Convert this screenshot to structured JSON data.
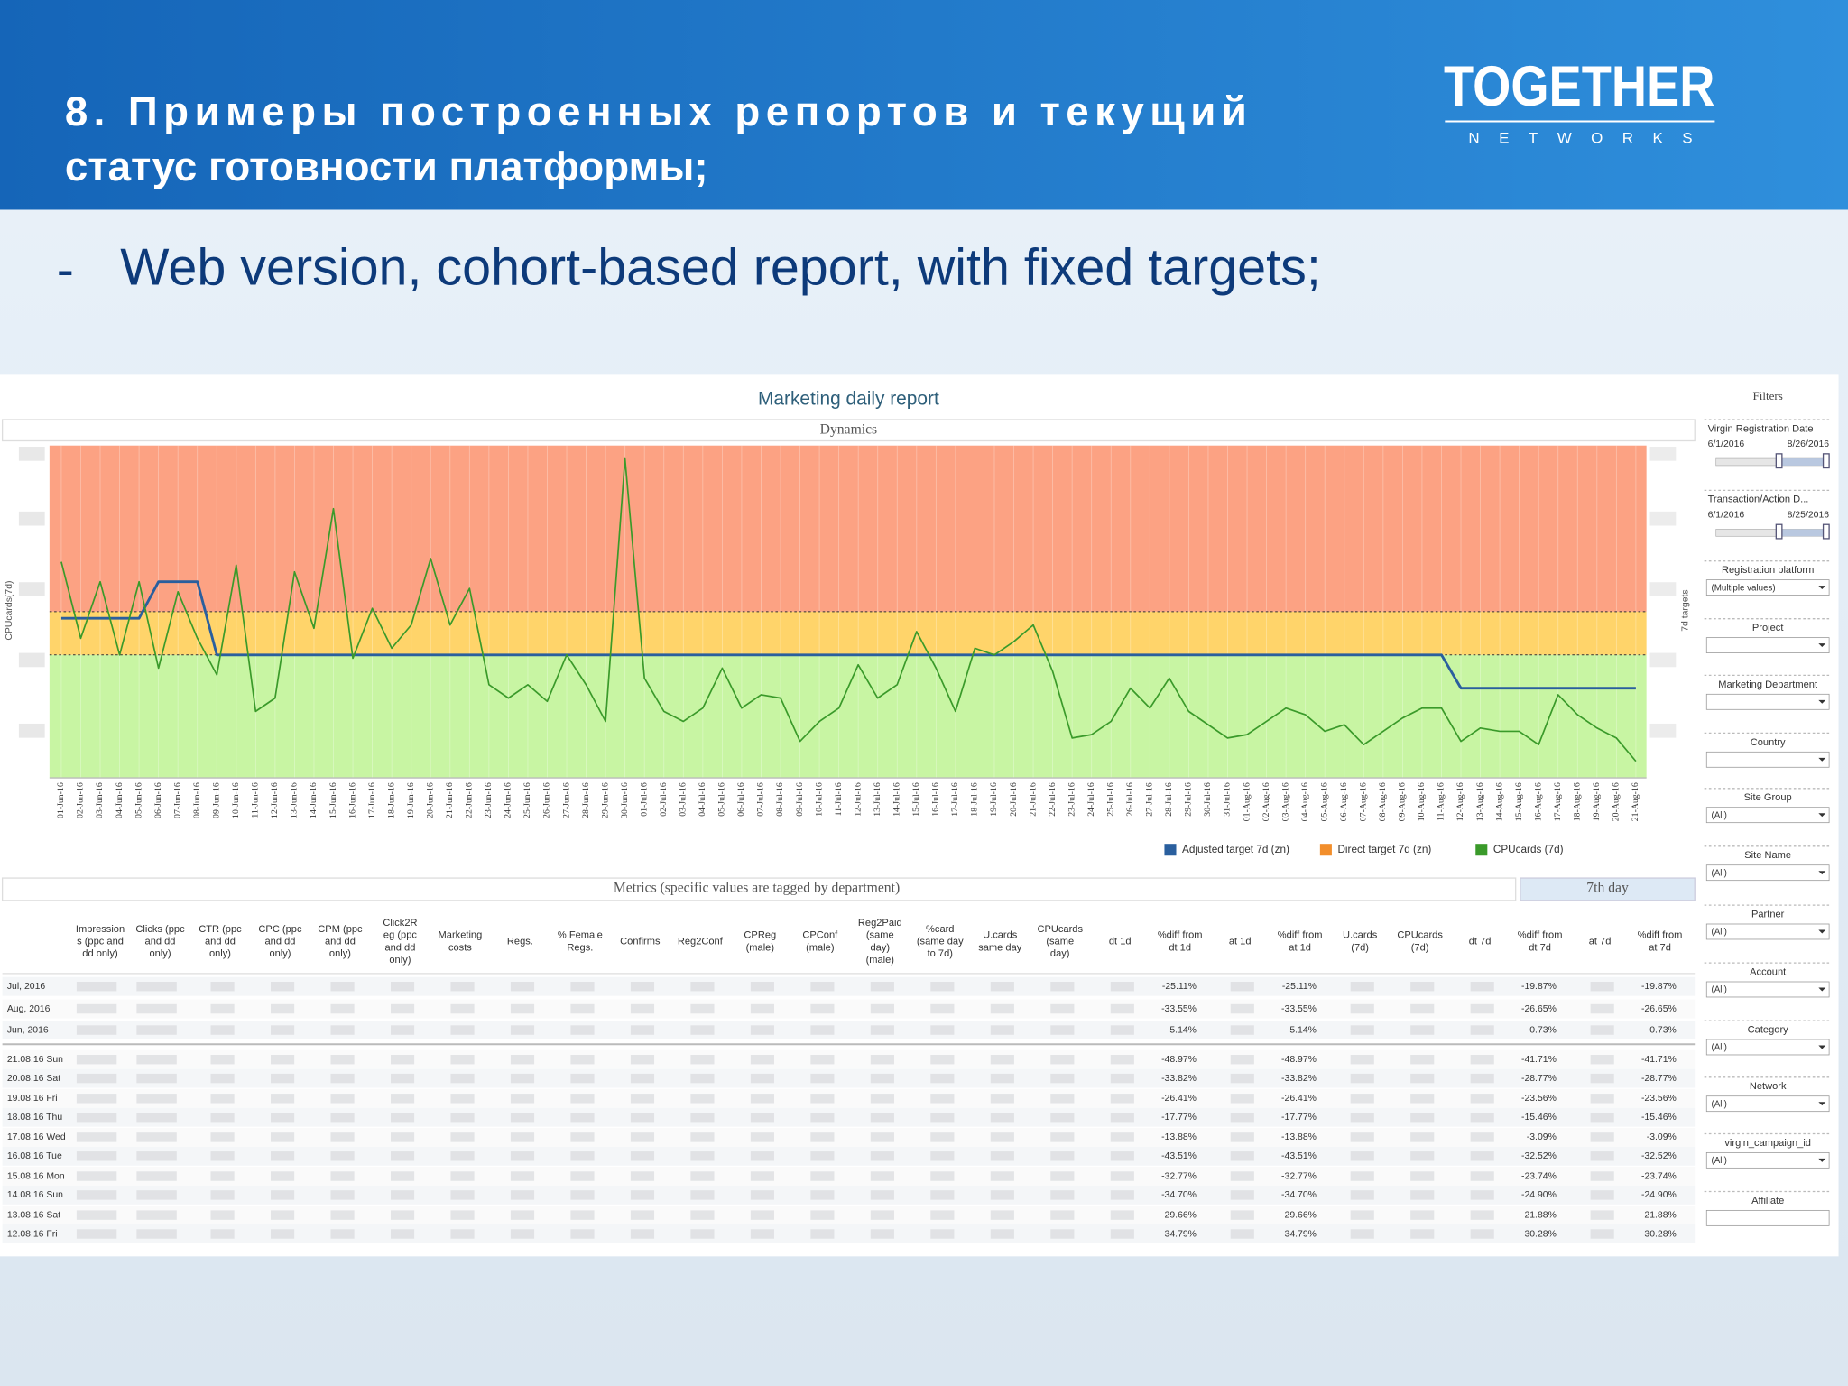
{
  "header": {
    "title": [
      "8. Примеры построенных репортов и текущий",
      "статус готовности платформы;"
    ],
    "logo": "TOGETHER",
    "logo_sub": "NETWORKS"
  },
  "bullet": {
    "marker": "-",
    "text": "Web version, cohort-based report, with fixed targets;"
  },
  "dashboard": {
    "title": "Marketing daily report",
    "section_dynamics": "Dynamics",
    "section_metrics": "Metrics (specific values are tagged by department)",
    "section_day": "7th day"
  },
  "chart_data": {
    "type": "line",
    "y_label": "CPUcards(7d)",
    "y2_label": "7d targets",
    "ylim": [
      0,
      100
    ],
    "bands": [
      {
        "color": "#c8f5a3",
        "from": 0,
        "to": 37
      },
      {
        "color": "#ffd46a",
        "from": 37,
        "to": 50
      },
      {
        "color": "#fca283",
        "from": 50,
        "to": 100
      }
    ],
    "categories": [
      "01-Jun-16",
      "02-Jun-16",
      "03-Jun-16",
      "04-Jun-16",
      "05-Jun-16",
      "06-Jun-16",
      "07-Jun-16",
      "08-Jun-16",
      "09-Jun-16",
      "10-Jun-16",
      "11-Jun-16",
      "12-Jun-16",
      "13-Jun-16",
      "14-Jun-16",
      "15-Jun-16",
      "16-Jun-16",
      "17-Jun-16",
      "18-Jun-16",
      "19-Jun-16",
      "20-Jun-16",
      "21-Jun-16",
      "22-Jun-16",
      "23-Jun-16",
      "24-Jun-16",
      "25-Jun-16",
      "26-Jun-16",
      "27-Jun-16",
      "28-Jun-16",
      "29-Jun-16",
      "30-Jun-16",
      "01-Jul-16",
      "02-Jul-16",
      "03-Jul-16",
      "04-Jul-16",
      "05-Jul-16",
      "06-Jul-16",
      "07-Jul-16",
      "08-Jul-16",
      "09-Jul-16",
      "10-Jul-16",
      "11-Jul-16",
      "12-Jul-16",
      "13-Jul-16",
      "14-Jul-16",
      "15-Jul-16",
      "16-Jul-16",
      "17-Jul-16",
      "18-Jul-16",
      "19-Jul-16",
      "20-Jul-16",
      "21-Jul-16",
      "22-Jul-16",
      "23-Jul-16",
      "24-Jul-16",
      "25-Jul-16",
      "26-Jul-16",
      "27-Jul-16",
      "28-Jul-16",
      "29-Jul-16",
      "30-Jul-16",
      "31-Jul-16",
      "01-Aug-16",
      "02-Aug-16",
      "03-Aug-16",
      "04-Aug-16",
      "05-Aug-16",
      "06-Aug-16",
      "07-Aug-16",
      "08-Aug-16",
      "09-Aug-16",
      "10-Aug-16",
      "11-Aug-16",
      "12-Aug-16",
      "13-Aug-16",
      "14-Aug-16",
      "15-Aug-16",
      "16-Aug-16",
      "17-Aug-16",
      "18-Aug-16",
      "19-Aug-16",
      "20-Aug-16",
      "21-Aug-16"
    ],
    "series": [
      {
        "name": "Adjusted target 7d (zn)",
        "color": "#2a5f9e",
        "values": [
          48,
          48,
          48,
          48,
          48,
          59,
          59,
          59,
          37,
          37,
          37,
          37,
          37,
          37,
          37,
          37,
          37,
          37,
          37,
          37,
          37,
          37,
          37,
          37,
          37,
          37,
          37,
          37,
          37,
          37,
          37,
          37,
          37,
          37,
          37,
          37,
          37,
          37,
          37,
          37,
          37,
          37,
          37,
          37,
          37,
          37,
          37,
          37,
          37,
          37,
          37,
          37,
          37,
          37,
          37,
          37,
          37,
          37,
          37,
          37,
          37,
          37,
          37,
          37,
          37,
          37,
          37,
          37,
          37,
          37,
          37,
          37,
          27,
          27,
          27,
          27,
          27,
          27,
          27,
          27,
          27,
          27
        ]
      },
      {
        "name": "Direct target 7d (zn)",
        "color": "#f28e2b",
        "values": [
          50,
          50,
          50,
          50,
          50,
          50,
          50,
          50,
          50,
          50,
          50,
          50,
          50,
          50,
          50,
          50,
          50,
          50,
          50,
          50,
          50,
          50,
          50,
          50,
          50,
          50,
          50,
          50,
          50,
          50,
          50,
          50,
          50,
          50,
          50,
          50,
          50,
          50,
          50,
          50,
          50,
          50,
          50,
          50,
          50,
          50,
          50,
          50,
          50,
          50,
          50,
          50,
          50,
          50,
          50,
          50,
          50,
          50,
          50,
          50,
          50,
          50,
          50,
          50,
          50,
          50,
          50,
          50,
          50,
          50,
          50,
          50,
          50,
          50,
          50,
          50,
          50,
          50,
          50,
          50,
          50,
          50
        ]
      },
      {
        "name": "CPUcards (7d)",
        "color": "#3a9a2a",
        "values": [
          65,
          42,
          59,
          37,
          59,
          33,
          56,
          42,
          31,
          64,
          20,
          24,
          62,
          45,
          81,
          36,
          51,
          39,
          46,
          66,
          46,
          57,
          28,
          24,
          28,
          23,
          37,
          28,
          17,
          96,
          30,
          20,
          17,
          21,
          33,
          21,
          25,
          24,
          11,
          17,
          21,
          34,
          24,
          28,
          44,
          33,
          20,
          39,
          37,
          41,
          46,
          32,
          12,
          13,
          17,
          27,
          21,
          30,
          20,
          16,
          12,
          13,
          17,
          21,
          19,
          14,
          16,
          10,
          14,
          18,
          21,
          21,
          11,
          15,
          14,
          14,
          10,
          25,
          19,
          15,
          12,
          5
        ]
      }
    ]
  },
  "table": {
    "columns": [
      [
        "Impression",
        "s (ppc and",
        "dd only)"
      ],
      [
        "Clicks (ppc",
        "and dd",
        "only)"
      ],
      [
        "CTR (ppc",
        "and dd",
        "only)"
      ],
      [
        "CPC (ppc",
        "and dd",
        "only)"
      ],
      [
        "CPM (ppc",
        "and dd",
        "only)"
      ],
      [
        "Click2R",
        "eg (ppc",
        "and dd",
        "only)"
      ],
      [
        "Marketing",
        "costs"
      ],
      [
        "Regs."
      ],
      [
        "% Female",
        "Regs."
      ],
      [
        "Confirms"
      ],
      [
        "Reg2Conf"
      ],
      [
        "CPReg",
        "(male)"
      ],
      [
        "CPConf",
        "(male)"
      ],
      [
        "Reg2Paid",
        "(same",
        "day)",
        "(male)"
      ],
      [
        "%card",
        "(same day",
        "to 7d)"
      ],
      [
        "U.cards",
        "same day"
      ],
      [
        "CPUcards",
        "(same",
        "day)"
      ],
      [
        "dt 1d"
      ],
      [
        "%diff from",
        "dt 1d"
      ],
      [
        "at 1d"
      ],
      [
        "%diff from",
        "at 1d"
      ],
      [
        "U.cards",
        "(7d)"
      ],
      [
        "CPUcards",
        "(7d)"
      ],
      [
        "dt 7d"
      ],
      [
        "%diff from",
        "dt 7d"
      ],
      [
        "at 7d"
      ],
      [
        "%diff from",
        "at 7d"
      ]
    ],
    "rows": [
      {
        "label": "Jul, 2016",
        "values": [
          "-25.11%",
          "-25.11%",
          "-19.87%",
          "-19.87%"
        ]
      },
      {
        "label": "Aug, 2016",
        "values": [
          "-33.55%",
          "-33.55%",
          "-26.65%",
          "-26.65%"
        ]
      },
      {
        "label": "Jun, 2016",
        "values": [
          "-5.14%",
          "-5.14%",
          "-0.73%",
          "-0.73%"
        ]
      },
      {
        "label": "21.08.16 Sun",
        "values": [
          "-48.97%",
          "-48.97%",
          "-41.71%",
          "-41.71%"
        ]
      },
      {
        "label": "20.08.16 Sat",
        "values": [
          "-33.82%",
          "-33.82%",
          "-28.77%",
          "-28.77%"
        ]
      },
      {
        "label": "19.08.16 Fri",
        "values": [
          "-26.41%",
          "-26.41%",
          "-23.56%",
          "-23.56%"
        ]
      },
      {
        "label": "18.08.16 Thu",
        "values": [
          "-17.77%",
          "-17.77%",
          "-15.46%",
          "-15.46%"
        ]
      },
      {
        "label": "17.08.16 Wed",
        "values": [
          "-13.88%",
          "-13.88%",
          "-3.09%",
          "-3.09%"
        ]
      },
      {
        "label": "16.08.16 Tue",
        "values": [
          "-43.51%",
          "-43.51%",
          "-32.52%",
          "-32.52%"
        ]
      },
      {
        "label": "15.08.16 Mon",
        "values": [
          "-32.77%",
          "-32.77%",
          "-23.74%",
          "-23.74%"
        ]
      },
      {
        "label": "14.08.16 Sun",
        "values": [
          "-34.70%",
          "-34.70%",
          "-24.90%",
          "-24.90%"
        ]
      },
      {
        "label": "13.08.16 Sat",
        "values": [
          "-29.66%",
          "-29.66%",
          "-21.88%",
          "-21.88%"
        ]
      },
      {
        "label": "12.08.16 Fri",
        "values": [
          "-34.79%",
          "-34.79%",
          "-30.28%",
          "-30.28%"
        ]
      }
    ]
  },
  "filters": {
    "title": "Filters",
    "items": [
      {
        "label": "Virgin Registration Date",
        "from": "6/1/2016",
        "to": "8/26/2016"
      },
      {
        "label": "Transaction/Action D...",
        "from": "6/1/2016",
        "to": "8/25/2016"
      },
      {
        "label": "Registration platform",
        "value": "(Multiple values)"
      },
      {
        "label": "Project"
      },
      {
        "label": "Marketing Department"
      },
      {
        "label": "Country"
      },
      {
        "label": "Site Group",
        "value": "(All)"
      },
      {
        "label": "Site Name",
        "value": "(All)"
      },
      {
        "label": "Partner",
        "value": "(All)"
      },
      {
        "label": "Account",
        "value": "(All)"
      },
      {
        "label": "Category",
        "value": "(All)"
      },
      {
        "label": "Network",
        "value": "(All)"
      },
      {
        "label": "virgin_campaign_id",
        "value": "(All)"
      },
      {
        "label": "Affiliate"
      }
    ]
  }
}
